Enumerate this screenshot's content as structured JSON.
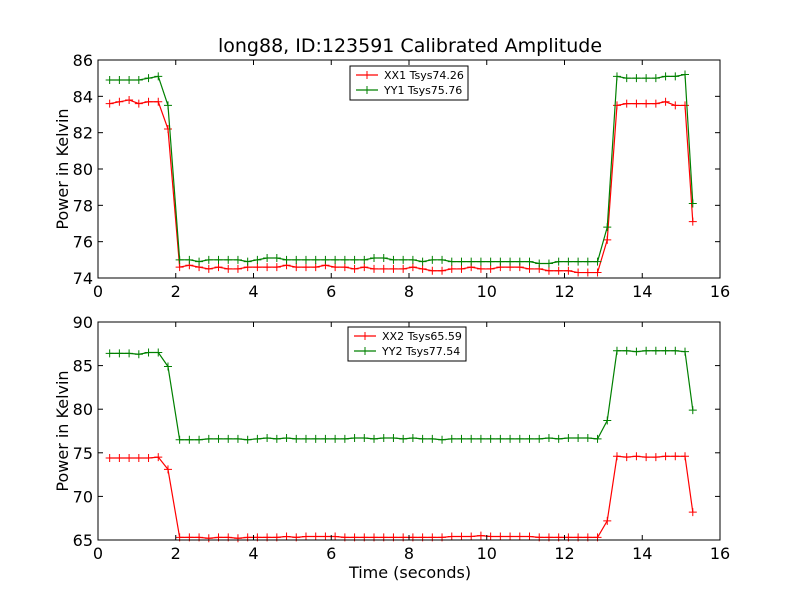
{
  "figure": {
    "title": "long88, ID:123591 Calibrated Amplitude"
  },
  "chart_data": [
    {
      "type": "line",
      "title": "long88, ID:123591 Calibrated Amplitude",
      "xlabel": "",
      "ylabel": "Power in Kelvin",
      "xlim": [
        0,
        16
      ],
      "ylim": [
        74,
        86
      ],
      "xticks": [
        0,
        2,
        4,
        6,
        8,
        10,
        12,
        14,
        16
      ],
      "yticks": [
        74,
        76,
        78,
        80,
        82,
        84,
        86
      ],
      "legend_position": "top-center",
      "grid": false,
      "x": [
        0.3,
        0.55,
        0.8,
        1.05,
        1.3,
        1.55,
        1.8,
        2.1,
        2.35,
        2.6,
        2.85,
        3.1,
        3.35,
        3.6,
        3.85,
        4.1,
        4.35,
        4.6,
        4.85,
        5.1,
        5.35,
        5.6,
        5.85,
        6.1,
        6.35,
        6.6,
        6.85,
        7.1,
        7.35,
        7.6,
        7.85,
        8.1,
        8.35,
        8.6,
        8.85,
        9.1,
        9.35,
        9.6,
        9.85,
        10.1,
        10.35,
        10.6,
        10.85,
        11.1,
        11.35,
        11.6,
        11.85,
        12.1,
        12.35,
        12.6,
        12.85,
        13.1,
        13.35,
        13.6,
        13.85,
        14.1,
        14.35,
        14.6,
        14.85,
        15.1,
        15.3
      ],
      "series": [
        {
          "name": "XX1 Tsys74.26",
          "color": "#ff0000",
          "values": [
            83.6,
            83.7,
            83.8,
            83.6,
            83.7,
            83.7,
            82.2,
            74.6,
            74.7,
            74.6,
            74.5,
            74.6,
            74.5,
            74.5,
            74.6,
            74.6,
            74.6,
            74.6,
            74.7,
            74.6,
            74.6,
            74.6,
            74.7,
            74.6,
            74.6,
            74.5,
            74.6,
            74.5,
            74.5,
            74.5,
            74.5,
            74.6,
            74.5,
            74.4,
            74.4,
            74.5,
            74.5,
            74.6,
            74.5,
            74.5,
            74.6,
            74.6,
            74.6,
            74.5,
            74.5,
            74.4,
            74.4,
            74.4,
            74.3,
            74.3,
            74.3,
            76.1,
            83.5,
            83.6,
            83.6,
            83.6,
            83.6,
            83.7,
            83.5,
            83.5,
            77.1
          ]
        },
        {
          "name": "YY1 Tsys75.76",
          "color": "#008000",
          "values": [
            84.9,
            84.9,
            84.9,
            84.9,
            85.0,
            85.1,
            83.5,
            75.0,
            75.0,
            74.9,
            75.0,
            75.0,
            75.0,
            75.0,
            74.9,
            75.0,
            75.1,
            75.1,
            75.0,
            75.0,
            75.0,
            75.0,
            75.0,
            75.0,
            75.0,
            75.0,
            75.0,
            75.1,
            75.1,
            75.0,
            75.0,
            75.0,
            74.9,
            75.0,
            75.0,
            74.9,
            74.9,
            74.9,
            74.9,
            74.9,
            74.9,
            74.9,
            74.9,
            74.9,
            74.8,
            74.8,
            74.9,
            74.9,
            74.9,
            74.9,
            74.9,
            76.8,
            85.1,
            85.0,
            85.0,
            85.0,
            85.0,
            85.1,
            85.1,
            85.2,
            78.1
          ]
        }
      ]
    },
    {
      "type": "line",
      "title": "",
      "xlabel": "Time (seconds)",
      "ylabel": "Power in Kelvin",
      "xlim": [
        0,
        16
      ],
      "ylim": [
        65,
        90
      ],
      "xticks": [
        0,
        2,
        4,
        6,
        8,
        10,
        12,
        14,
        16
      ],
      "yticks": [
        65,
        70,
        75,
        80,
        85,
        90
      ],
      "legend_position": "top-center",
      "grid": false,
      "x": [
        0.3,
        0.55,
        0.8,
        1.05,
        1.3,
        1.55,
        1.8,
        2.1,
        2.35,
        2.6,
        2.85,
        3.1,
        3.35,
        3.6,
        3.85,
        4.1,
        4.35,
        4.6,
        4.85,
        5.1,
        5.35,
        5.6,
        5.85,
        6.1,
        6.35,
        6.6,
        6.85,
        7.1,
        7.35,
        7.6,
        7.85,
        8.1,
        8.35,
        8.6,
        8.85,
        9.1,
        9.35,
        9.6,
        9.85,
        10.1,
        10.35,
        10.6,
        10.85,
        11.1,
        11.35,
        11.6,
        11.85,
        12.1,
        12.35,
        12.6,
        12.85,
        13.1,
        13.35,
        13.6,
        13.85,
        14.1,
        14.35,
        14.6,
        14.85,
        15.1,
        15.3
      ],
      "series": [
        {
          "name": "XX2 Tsys65.59",
          "color": "#ff0000",
          "values": [
            74.4,
            74.4,
            74.4,
            74.4,
            74.4,
            74.5,
            73.1,
            65.3,
            65.3,
            65.3,
            65.2,
            65.3,
            65.3,
            65.2,
            65.3,
            65.3,
            65.3,
            65.3,
            65.4,
            65.3,
            65.4,
            65.4,
            65.4,
            65.4,
            65.3,
            65.3,
            65.3,
            65.3,
            65.3,
            65.3,
            65.3,
            65.3,
            65.3,
            65.3,
            65.3,
            65.4,
            65.4,
            65.4,
            65.5,
            65.4,
            65.4,
            65.4,
            65.4,
            65.4,
            65.3,
            65.3,
            65.3,
            65.3,
            65.3,
            65.3,
            65.3,
            67.2,
            74.6,
            74.5,
            74.6,
            74.5,
            74.5,
            74.6,
            74.6,
            74.6,
            68.2
          ]
        },
        {
          "name": "YY2 Tsys77.54",
          "color": "#008000",
          "values": [
            86.4,
            86.4,
            86.4,
            86.3,
            86.5,
            86.5,
            84.9,
            76.5,
            76.5,
            76.5,
            76.6,
            76.6,
            76.6,
            76.6,
            76.5,
            76.6,
            76.7,
            76.6,
            76.7,
            76.6,
            76.6,
            76.6,
            76.6,
            76.6,
            76.6,
            76.7,
            76.7,
            76.6,
            76.7,
            76.7,
            76.6,
            76.7,
            76.6,
            76.6,
            76.5,
            76.6,
            76.6,
            76.6,
            76.6,
            76.6,
            76.6,
            76.6,
            76.6,
            76.6,
            76.6,
            76.7,
            76.6,
            76.7,
            76.7,
            76.7,
            76.6,
            78.7,
            86.7,
            86.7,
            86.6,
            86.7,
            86.7,
            86.7,
            86.7,
            86.6,
            79.9
          ]
        }
      ]
    }
  ]
}
